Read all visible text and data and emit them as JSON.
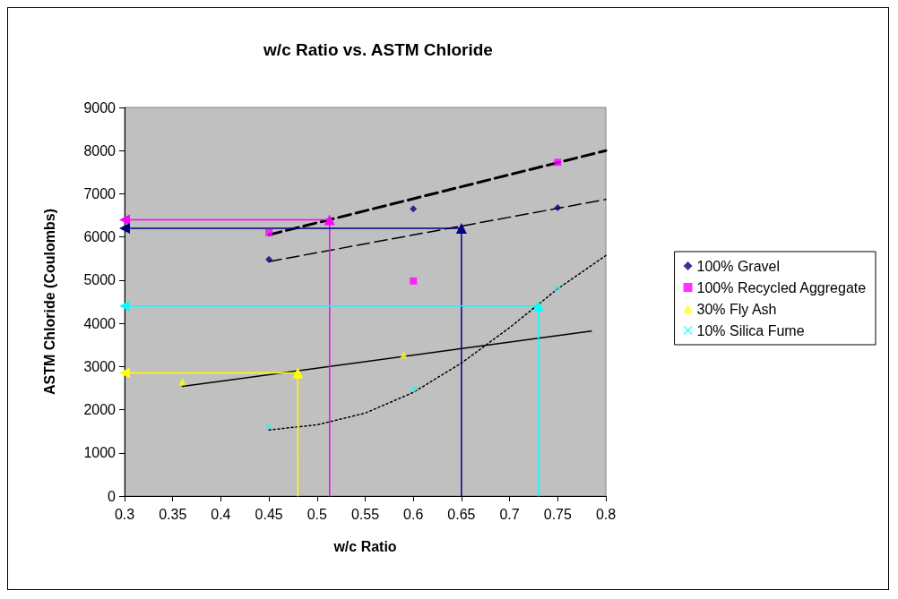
{
  "chart_data": {
    "type": "scatter",
    "title": "w/c Ratio vs. ASTM Chloride",
    "xlabel": "w/c Ratio",
    "ylabel": "ASTM Chloride (Coulombs)",
    "xlim": [
      0.3,
      0.8
    ],
    "xticks": [
      0.3,
      0.35,
      0.4,
      0.45,
      0.5,
      0.55,
      0.6,
      0.65,
      0.7,
      0.75,
      0.8
    ],
    "ylim": [
      0,
      9000
    ],
    "yticks": [
      0,
      1000,
      2000,
      3000,
      4000,
      5000,
      6000,
      7000,
      8000,
      9000
    ],
    "grid": false,
    "legend": "right",
    "series": [
      {
        "name": "100% Gravel",
        "color": "#000080",
        "marker": "diamond",
        "x": [
          0.45,
          0.6,
          0.75
        ],
        "values": [
          5480,
          6650,
          6680
        ]
      },
      {
        "name": "100% Recycled Aggregate",
        "color": "#ff00ff",
        "marker": "square",
        "x": [
          0.45,
          0.6,
          0.75
        ],
        "values": [
          6100,
          4980,
          7730
        ]
      },
      {
        "name": "30% Fly Ash",
        "color": "#ffff00",
        "marker": "triangle",
        "x": [
          0.36,
          0.59
        ],
        "values": [
          2650,
          3270
        ]
      },
      {
        "name": "10% Silica Fume",
        "color": "#00ffff",
        "marker": "cross",
        "x": [
          0.45,
          0.6,
          0.75
        ],
        "values": [
          1620,
          2480,
          4800
        ]
      },
      {
        "type": "line",
        "color": "#000000",
        "marker": "none",
        "line_style": "dashed",
        "x": [
          0.45,
          0.8
        ],
        "values": [
          6050,
          8000
        ]
      },
      {
        "type": "line",
        "color": "#000000",
        "marker": "none",
        "line_style": "dashed",
        "x": [
          0.45,
          0.8
        ],
        "values": [
          5430,
          6870
        ]
      },
      {
        "type": "line",
        "color": "#000000",
        "marker": "none",
        "line_style": "solid",
        "x": [
          0.36,
          0.785
        ],
        "values": [
          2540,
          3820
        ]
      },
      {
        "type": "line",
        "color": "#000000",
        "marker": "none",
        "line_style": "dotted",
        "x": [
          0.45,
          0.5,
          0.55,
          0.6,
          0.65,
          0.7,
          0.75,
          0.8
        ],
        "values": [
          1530,
          1650,
          1920,
          2400,
          3080,
          3900,
          4800,
          5570
        ]
      },
      {
        "type": "line",
        "color": "#ffff00",
        "marker": "triangle",
        "line_style": "solid",
        "x": [
          0.48,
          0.48,
          0.3
        ],
        "values": [
          0,
          2850,
          2850
        ]
      },
      {
        "type": "line",
        "color": "#ff00ff",
        "marker": "triangle",
        "line_style": "solid",
        "x": [
          0.513,
          0.513,
          0.3
        ],
        "values": [
          0,
          6400,
          6400
        ]
      },
      {
        "type": "line",
        "color": "#000080",
        "marker": "triangle",
        "line_style": "solid",
        "x": [
          0.65,
          0.65,
          0.3
        ],
        "values": [
          0,
          6200,
          6200
        ]
      },
      {
        "type": "line",
        "color": "#00ffff",
        "marker": "triangle",
        "line_style": "solid",
        "x": [
          0.73,
          0.73,
          0.3
        ],
        "values": [
          0,
          4400,
          4400
        ]
      }
    ]
  }
}
